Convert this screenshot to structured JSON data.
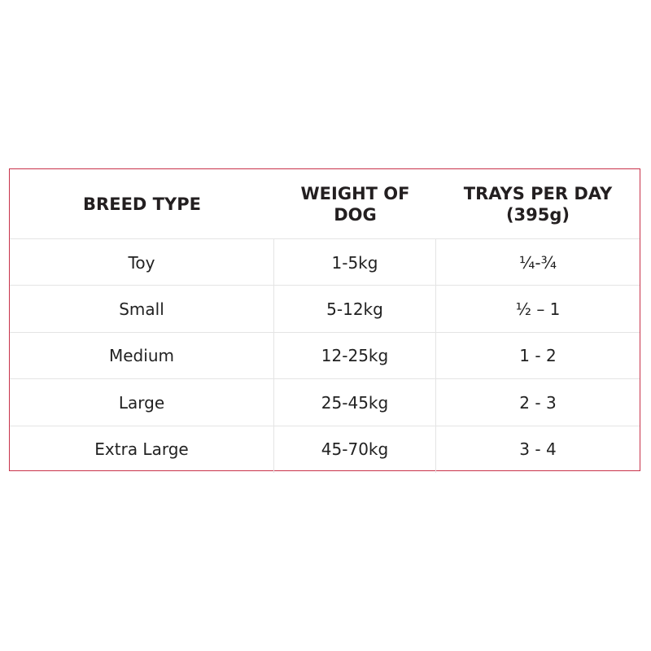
{
  "table": {
    "headers": [
      [
        "BREED TYPE"
      ],
      [
        "WEIGHT OF",
        "DOG"
      ],
      [
        "TRAYS PER DAY",
        "(395g)"
      ]
    ],
    "rows": [
      [
        "Toy",
        "1-5kg",
        "¼-¾"
      ],
      [
        "Small",
        "5-12kg",
        "½ – 1"
      ],
      [
        "Medium",
        "12-25kg",
        "1 - 2"
      ],
      [
        "Large",
        "25-45kg",
        "2 - 3"
      ],
      [
        "Extra Large",
        "45-70kg",
        "3 - 4"
      ]
    ]
  }
}
